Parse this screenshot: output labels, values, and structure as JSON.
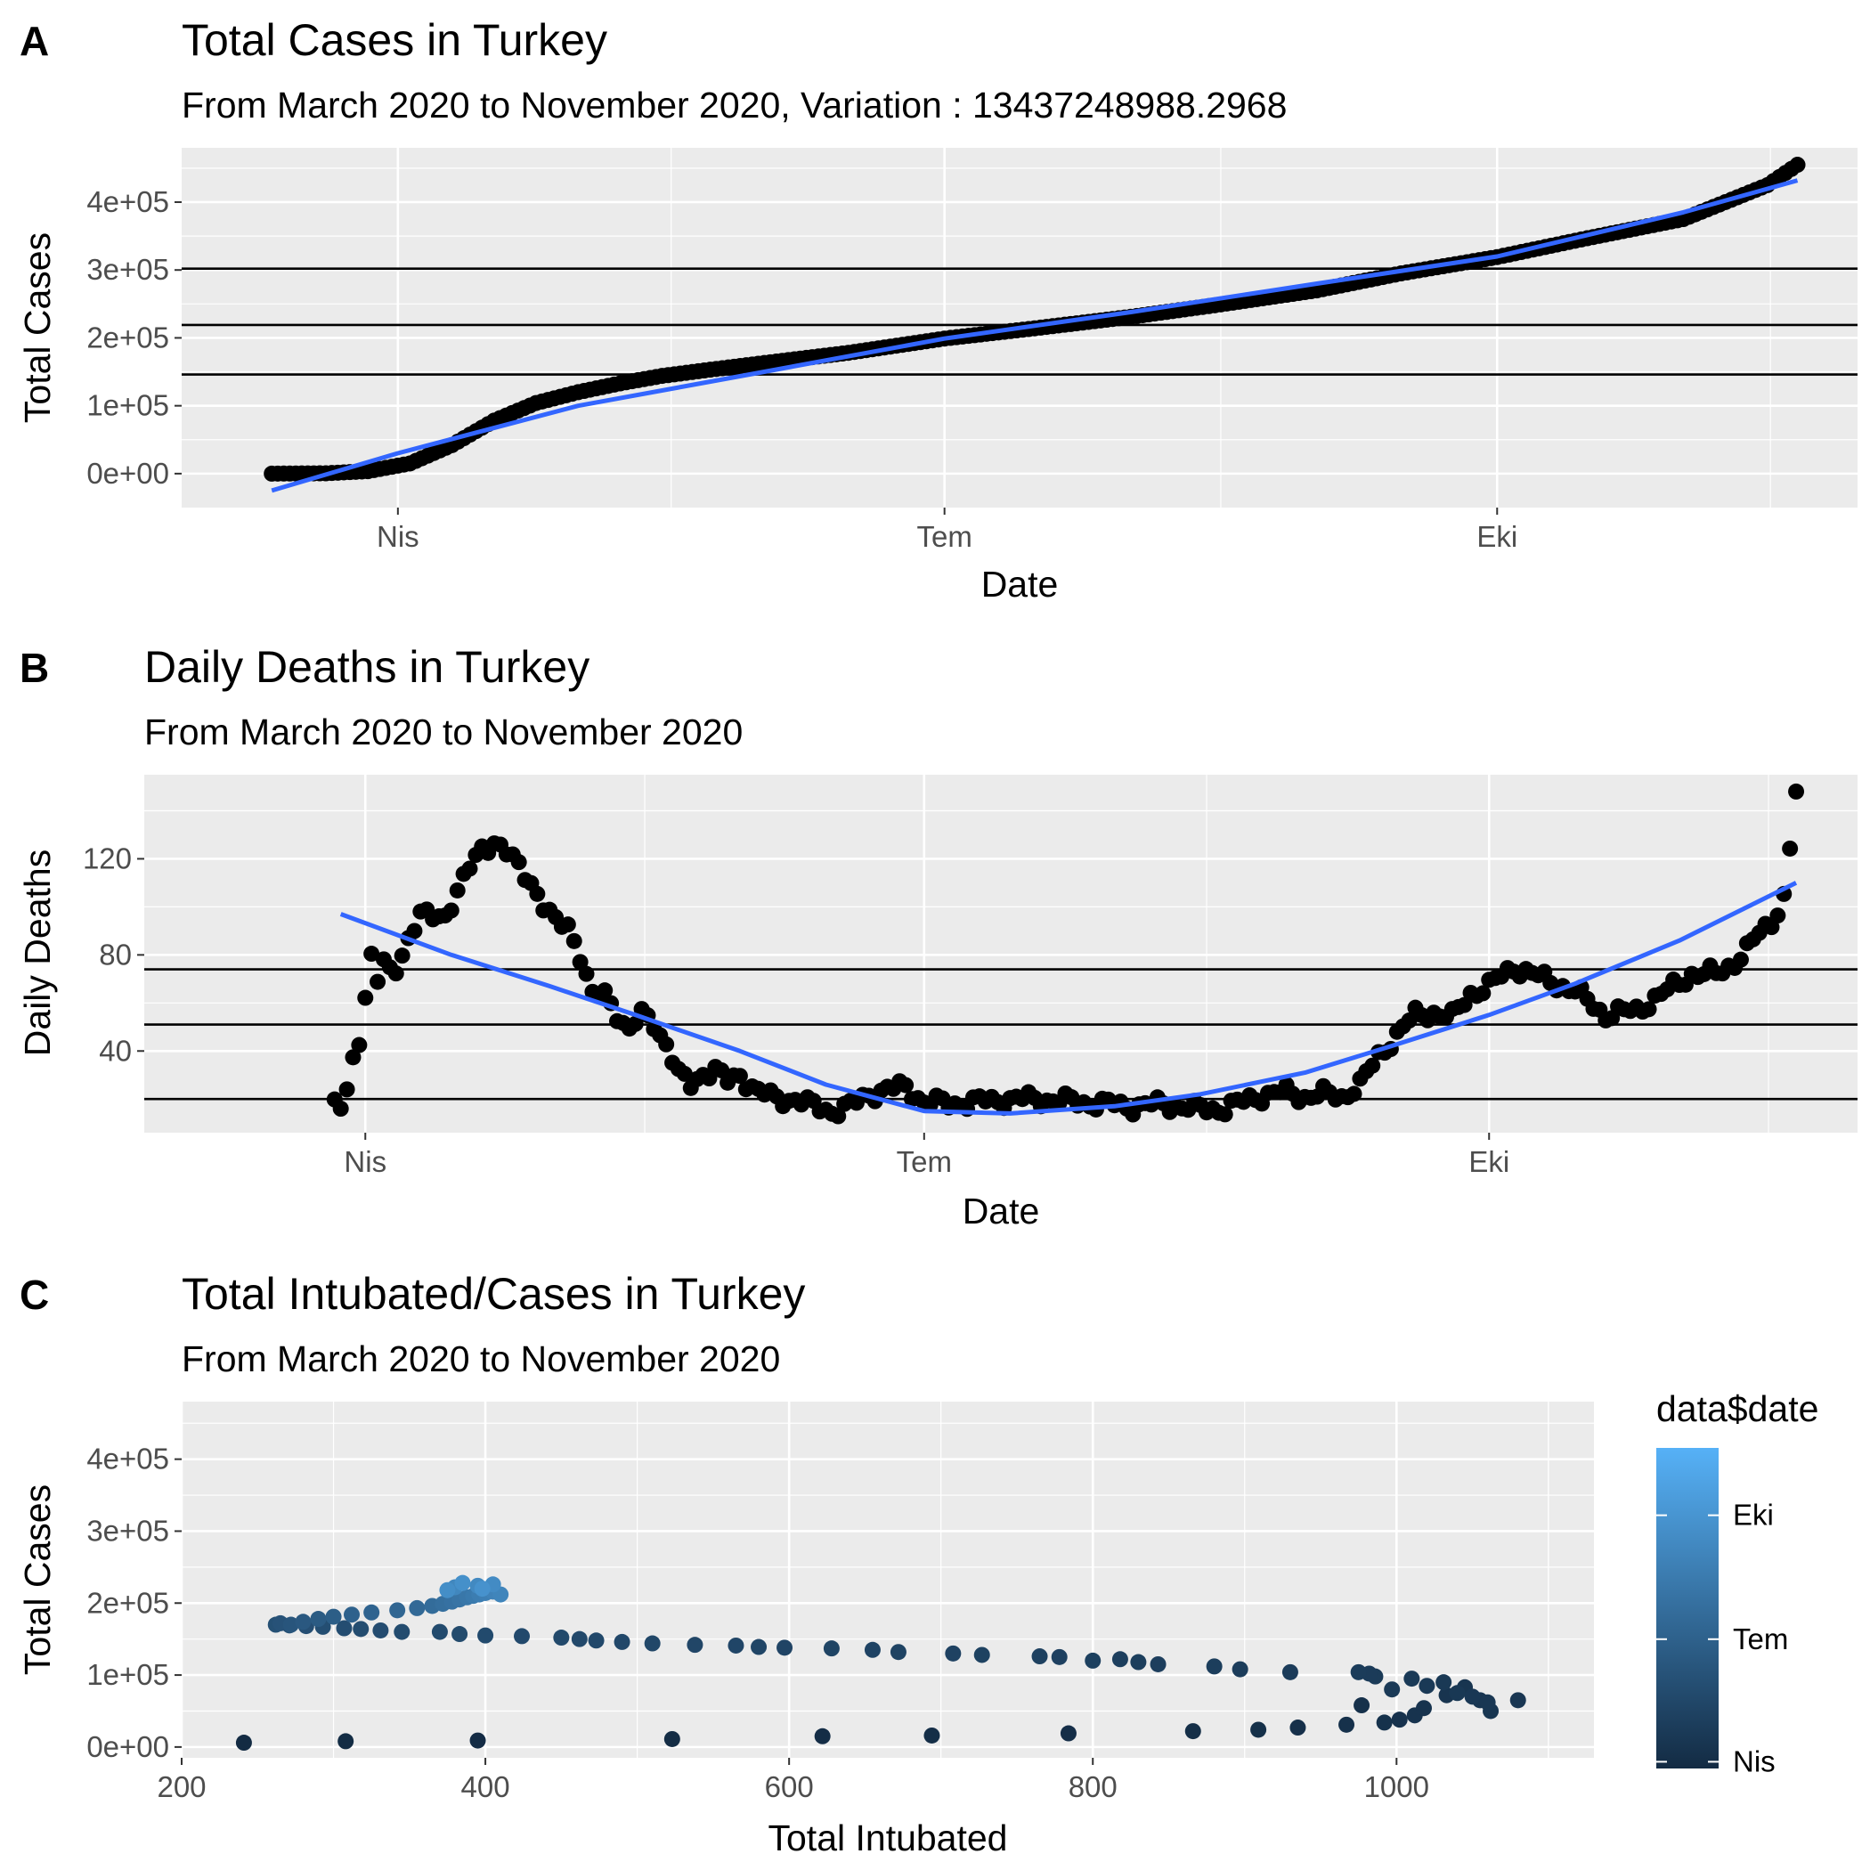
{
  "chart_data": [
    {
      "type": "scatter",
      "panel_label": "A",
      "title": "Total Cases in Turkey",
      "subtitle": "From March 2020 to November 2020, Variation :  13437248988.2968",
      "xlabel": "Date",
      "ylabel": "Total Cases",
      "x_ticks": [
        {
          "value": "2020-04-01",
          "label": "Nis"
        },
        {
          "value": "2020-07-01",
          "label": "Tem"
        },
        {
          "value": "2020-10-01",
          "label": "Eki"
        }
      ],
      "y_ticks": [
        {
          "value": 0,
          "label": "0e+00"
        },
        {
          "value": 100000,
          "label": "1e+05"
        },
        {
          "value": 200000,
          "label": "2e+05"
        },
        {
          "value": 300000,
          "label": "3e+05"
        },
        {
          "value": 400000,
          "label": "4e+05"
        }
      ],
      "xlim": [
        "2020-02-25",
        "2020-11-30"
      ],
      "ylim": [
        -50000,
        480000
      ],
      "hlines": [
        146000,
        219000,
        302000
      ],
      "grid": true,
      "point_color": "#000000",
      "smooth_color": "#3366ff",
      "series": [
        {
          "x": [
            "2020-03-11",
            "2020-03-20",
            "2020-03-27",
            "2020-04-03",
            "2020-04-10",
            "2020-04-17",
            "2020-04-24",
            "2020-05-01",
            "2020-05-08",
            "2020-05-15",
            "2020-05-22",
            "2020-06-01",
            "2020-06-15",
            "2020-07-01",
            "2020-07-15",
            "2020-08-01",
            "2020-08-15",
            "2020-09-01",
            "2020-09-15",
            "2020-10-01",
            "2020-10-15",
            "2020-11-01",
            "2020-11-15",
            "2020-11-20"
          ],
          "y": [
            1,
            500,
            3600,
            15000,
            42000,
            78000,
            104000,
            120000,
            133000,
            144000,
            152000,
            163000,
            178000,
            199000,
            213000,
            231000,
            248000,
            270000,
            295000,
            319000,
            345000,
            375000,
            425000,
            455000
          ]
        }
      ],
      "smooth": {
        "x": [
          "2020-03-11",
          "2020-04-01",
          "2020-05-01",
          "2020-06-01",
          "2020-07-01",
          "2020-08-01",
          "2020-09-01",
          "2020-10-01",
          "2020-11-01",
          "2020-11-20"
        ],
        "y": [
          -25000,
          30000,
          100000,
          150000,
          199000,
          238000,
          280000,
          320000,
          385000,
          432000
        ]
      }
    },
    {
      "type": "scatter",
      "panel_label": "B",
      "title": "Daily Deaths in Turkey",
      "subtitle": "From March 2020 to November 2020",
      "xlabel": "Date",
      "ylabel": "Daily Deaths",
      "x_ticks": [
        {
          "value": "2020-04-01",
          "label": "Nis"
        },
        {
          "value": "2020-07-01",
          "label": "Tem"
        },
        {
          "value": "2020-10-01",
          "label": "Eki"
        }
      ],
      "y_ticks": [
        {
          "value": 40,
          "label": "40"
        },
        {
          "value": 80,
          "label": "80"
        },
        {
          "value": 120,
          "label": "120"
        }
      ],
      "xlim": [
        "2020-02-25",
        "2020-11-30"
      ],
      "ylim": [
        6,
        155
      ],
      "hlines": [
        20,
        51,
        74
      ],
      "grid": true,
      "point_color": "#000000",
      "smooth_color": "#3366ff",
      "series": [
        {
          "x": [
            "2020-03-27",
            "2020-03-28",
            "2020-03-29",
            "2020-03-30",
            "2020-03-31",
            "2020-04-01",
            "2020-04-02",
            "2020-04-03",
            "2020-04-04",
            "2020-04-05",
            "2020-04-06",
            "2020-04-08",
            "2020-04-10",
            "2020-04-12",
            "2020-04-14",
            "2020-04-16",
            "2020-04-18",
            "2020-04-20",
            "2020-04-22",
            "2020-04-24",
            "2020-04-26",
            "2020-04-28",
            "2020-04-30",
            "2020-05-02",
            "2020-05-04",
            "2020-05-06",
            "2020-05-08",
            "2020-05-10",
            "2020-05-12",
            "2020-05-14",
            "2020-05-16",
            "2020-05-18",
            "2020-05-20",
            "2020-05-22",
            "2020-05-24",
            "2020-05-26",
            "2020-05-28",
            "2020-05-30",
            "2020-06-01",
            "2020-06-04",
            "2020-06-07",
            "2020-06-10",
            "2020-06-13",
            "2020-06-16",
            "2020-06-19",
            "2020-06-22",
            "2020-06-25",
            "2020-06-28",
            "2020-07-01",
            "2020-07-05",
            "2020-07-10",
            "2020-07-15",
            "2020-07-20",
            "2020-07-25",
            "2020-07-30",
            "2020-08-04",
            "2020-08-09",
            "2020-08-14",
            "2020-08-19",
            "2020-08-24",
            "2020-08-29",
            "2020-09-01",
            "2020-09-04",
            "2020-09-07",
            "2020-09-10",
            "2020-09-13",
            "2020-09-16",
            "2020-09-19",
            "2020-09-22",
            "2020-09-25",
            "2020-09-28",
            "2020-10-01",
            "2020-10-05",
            "2020-10-10",
            "2020-10-15",
            "2020-10-20",
            "2020-10-25",
            "2020-10-30",
            "2020-11-03",
            "2020-11-07",
            "2020-11-10",
            "2020-11-12",
            "2020-11-14",
            "2020-11-16",
            "2020-11-18",
            "2020-11-19",
            "2020-11-20"
          ],
          "y": [
            17,
            16,
            23,
            37,
            46,
            63,
            79,
            69,
            76,
            73,
            75,
            87,
            96,
            96,
            97,
            106,
            116,
            125,
            127,
            122,
            117,
            111,
            100,
            93,
            93,
            80,
            62,
            64,
            56,
            48,
            55,
            52,
            43,
            30,
            26,
            31,
            32,
            27,
            30,
            23,
            20,
            20,
            17,
            15,
            17,
            22,
            24,
            25,
            19,
            18,
            19,
            20,
            20,
            19,
            18,
            17,
            18,
            16,
            16,
            21,
            23,
            21,
            22,
            21,
            26,
            38,
            47,
            55,
            56,
            54,
            64,
            67,
            75,
            70,
            65,
            55,
            57,
            65,
            72,
            72,
            77,
            82,
            89,
            94,
            104,
            124,
            148
          ]
        }
      ],
      "smooth": {
        "x": [
          "2020-03-28",
          "2020-04-15",
          "2020-05-01",
          "2020-05-15",
          "2020-06-01",
          "2020-06-15",
          "2020-07-01",
          "2020-07-15",
          "2020-08-01",
          "2020-08-15",
          "2020-09-01",
          "2020-09-15",
          "2020-10-01",
          "2020-10-15",
          "2020-11-01",
          "2020-11-20"
        ],
        "y": [
          97,
          80,
          67,
          55,
          40,
          26,
          15,
          14,
          17,
          22,
          31,
          42,
          55,
          68,
          86,
          110
        ]
      }
    },
    {
      "type": "scatter",
      "panel_label": "C",
      "title": "Total Intubated/Cases in Turkey",
      "subtitle": "From March 2020 to November 2020",
      "xlabel": "Total Intubated",
      "ylabel": "Total Cases",
      "x_ticks": [
        {
          "value": 200,
          "label": "200"
        },
        {
          "value": 400,
          "label": "400"
        },
        {
          "value": 600,
          "label": "600"
        },
        {
          "value": 800,
          "label": "800"
        },
        {
          "value": 1000,
          "label": "1000"
        }
      ],
      "y_ticks": [
        {
          "value": 0,
          "label": "0e+00"
        },
        {
          "value": 100000,
          "label": "1e+05"
        },
        {
          "value": 200000,
          "label": "2e+05"
        },
        {
          "value": 300000,
          "label": "3e+05"
        },
        {
          "value": 400000,
          "label": "4e+05"
        }
      ],
      "xlim": [
        200,
        1130
      ],
      "ylim": [
        -15000,
        480000
      ],
      "grid": true,
      "color_scale": {
        "title": "data$date",
        "low": "#132b43",
        "high": "#56b1f7",
        "domain": [
          "2020-03-27",
          "2020-11-20"
        ],
        "ticks": [
          {
            "value": "2020-04-01",
            "label": "Nis"
          },
          {
            "value": "2020-07-01",
            "label": "Tem"
          },
          {
            "value": "2020-10-01",
            "label": "Eki"
          }
        ]
      },
      "series": [
        {
          "x": [
            241,
            308,
            395,
            523,
            622,
            694,
            784,
            866,
            909,
            935,
            967,
            977,
            992,
            1002,
            1012,
            1018,
            1033,
            1045,
            1055,
            1062,
            1080,
            1060,
            1050,
            1040,
            1031,
            1020,
            1010,
            997,
            986,
            982,
            975,
            930,
            897,
            880,
            843,
            830,
            818,
            800,
            778,
            765,
            727,
            708,
            672,
            655,
            628,
            597,
            580,
            565,
            538,
            510,
            490,
            473,
            462,
            450,
            424,
            400,
            383,
            370,
            345,
            331,
            318,
            307,
            293,
            282,
            271,
            262
          ],
          "y": [
            6000,
            8000,
            9000,
            11000,
            15000,
            16000,
            19000,
            22000,
            24000,
            27000,
            31000,
            58000,
            34000,
            38000,
            44000,
            54000,
            72000,
            83000,
            65000,
            50000,
            65000,
            62000,
            70000,
            75000,
            90000,
            85000,
            95000,
            80000,
            98000,
            102000,
            104000,
            104000,
            108000,
            112000,
            115000,
            118000,
            122000,
            120000,
            125000,
            126000,
            128000,
            130000,
            132000,
            135000,
            137000,
            138000,
            139000,
            141000,
            142000,
            144000,
            146000,
            148000,
            150000,
            152000,
            154000,
            155000,
            157000,
            160000,
            160000,
            162000,
            164000,
            165000,
            167000,
            168000,
            169000,
            170000
          ],
          "dates": [
            "2020-03-27",
            "2020-03-28",
            "2020-03-29",
            "2020-03-30",
            "2020-03-31",
            "2020-04-01",
            "2020-04-02",
            "2020-04-03",
            "2020-04-04",
            "2020-04-05",
            "2020-04-06",
            "2020-04-07",
            "2020-04-08",
            "2020-04-09",
            "2020-04-10",
            "2020-04-11",
            "2020-04-12",
            "2020-04-13",
            "2020-04-14",
            "2020-04-15",
            "2020-04-16",
            "2020-04-17",
            "2020-04-18",
            "2020-04-19",
            "2020-04-20",
            "2020-04-21",
            "2020-04-22",
            "2020-04-23",
            "2020-04-24",
            "2020-04-25",
            "2020-04-26",
            "2020-04-27",
            "2020-04-28",
            "2020-04-29",
            "2020-04-30",
            "2020-05-01",
            "2020-05-02",
            "2020-05-03",
            "2020-05-04",
            "2020-05-05",
            "2020-05-06",
            "2020-05-07",
            "2020-05-08",
            "2020-05-09",
            "2020-05-10",
            "2020-05-11",
            "2020-05-12",
            "2020-05-13",
            "2020-05-14",
            "2020-05-15",
            "2020-05-16",
            "2020-05-17",
            "2020-05-18",
            "2020-05-19",
            "2020-05-20",
            "2020-05-21",
            "2020-05-22",
            "2020-05-23",
            "2020-05-24",
            "2020-05-25",
            "2020-05-26",
            "2020-05-27",
            "2020-05-28",
            "2020-05-29",
            "2020-05-30",
            "2020-05-31"
          ]
        },
        {
          "x": [
            265,
            272,
            280,
            290,
            300,
            312,
            325,
            342,
            355,
            365,
            372,
            378,
            383,
            388,
            392,
            396,
            400,
            405,
            410,
            380,
            395,
            405,
            375,
            385,
            398
          ],
          "y": [
            172000,
            170000,
            174000,
            178000,
            181000,
            184000,
            187000,
            190000,
            193000,
            196000,
            199000,
            202000,
            205000,
            208000,
            210000,
            212000,
            214000,
            216000,
            212000,
            222000,
            224000,
            226000,
            218000,
            228000,
            220000
          ],
          "dates": [
            "2020-06-05",
            "2020-06-10",
            "2020-06-15",
            "2020-06-20",
            "2020-06-25",
            "2020-07-01",
            "2020-07-05",
            "2020-07-10",
            "2020-07-15",
            "2020-07-20",
            "2020-07-25",
            "2020-07-30",
            "2020-08-04",
            "2020-08-09",
            "2020-08-14",
            "2020-08-19",
            "2020-08-24",
            "2020-08-29",
            "2020-09-02",
            "2020-09-06",
            "2020-09-10",
            "2020-09-14",
            "2020-09-18",
            "2020-09-22",
            "2020-09-26"
          ]
        }
      ]
    }
  ]
}
